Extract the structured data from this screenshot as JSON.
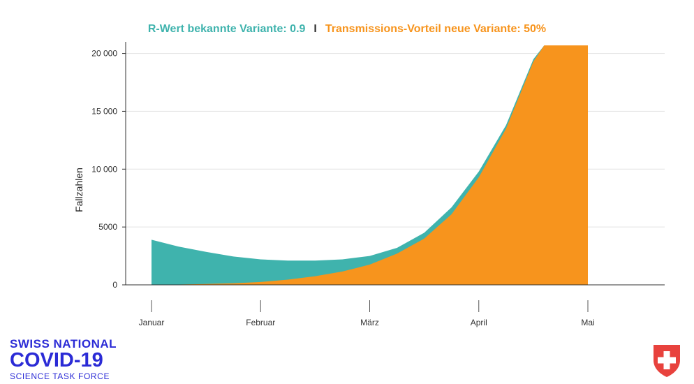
{
  "chart_data": {
    "type": "area",
    "title_left": "R-Wert bekannte Variante: 0.9",
    "title_separator": "I",
    "title_right": "Transmissions-Vorteil neue Variante: 50%",
    "ylabel": "Fallzahlen",
    "ylim": [
      0,
      21000
    ],
    "yticks": [
      0,
      5000,
      10000,
      15000,
      20000
    ],
    "ytick_labels": [
      "0",
      "5000",
      "10 000",
      "15 000",
      "20 000"
    ],
    "xticks": [
      0,
      1,
      2,
      3,
      4
    ],
    "xtick_labels": [
      "Januar",
      "Februar",
      "März",
      "April",
      "Mai"
    ],
    "grid": true,
    "series": [
      {
        "color": "#3fb3ad",
        "x": [
          0,
          0.25,
          0.5,
          0.75,
          1.0,
          1.25,
          1.5,
          1.75,
          2.0,
          2.25,
          2.5,
          2.75,
          3.0,
          3.25,
          3.5,
          3.6,
          4.0
        ],
        "values": [
          3900,
          3300,
          2850,
          2450,
          2200,
          2100,
          2100,
          2200,
          2500,
          3200,
          4500,
          6700,
          9800,
          13800,
          19500,
          20700,
          20700
        ]
      },
      {
        "color": "#f7941d",
        "x": [
          0,
          0.25,
          0.5,
          0.75,
          1.0,
          1.25,
          1.5,
          1.75,
          2.0,
          2.25,
          2.5,
          2.75,
          3.0,
          3.25,
          3.5,
          3.6,
          4.0
        ],
        "values": [
          0,
          30,
          70,
          140,
          250,
          450,
          750,
          1150,
          1750,
          2700,
          4000,
          6100,
          9300,
          13500,
          19300,
          20700,
          20700
        ]
      }
    ]
  },
  "logo": {
    "line1": "SWISS NATIONAL",
    "line2": "COVID-19",
    "line3": "SCIENCE TASK FORCE"
  },
  "shield_icon": "swiss-shield-icon"
}
